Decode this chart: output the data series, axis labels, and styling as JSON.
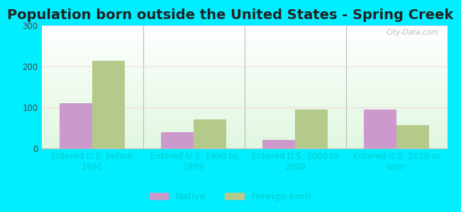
{
  "title": "Population born outside the United States - Spring Creek",
  "categories": [
    "Entered U.S. before\n1990",
    "Entered U.S. 1990 to\n1999",
    "Entered U.S. 2000 to\n2009",
    "Entered U.S. 2010 or\nlater"
  ],
  "native_values": [
    110,
    40,
    20,
    95
  ],
  "foreign_values": [
    213,
    70,
    95,
    57
  ],
  "native_color": "#cc99cc",
  "foreign_color": "#b5c98a",
  "background_color": "#00eeff",
  "ylim": [
    0,
    300
  ],
  "yticks": [
    0,
    100,
    200,
    300
  ],
  "bar_width": 0.32,
  "title_fontsize": 14,
  "tick_fontsize": 8.5,
  "legend_fontsize": 9.5,
  "watermark": "City-Data.com",
  "xtick_color": "#00cccc",
  "ytick_color": "#444444",
  "separator_color": "#bbbbbb",
  "grid_color": "#dddddd"
}
